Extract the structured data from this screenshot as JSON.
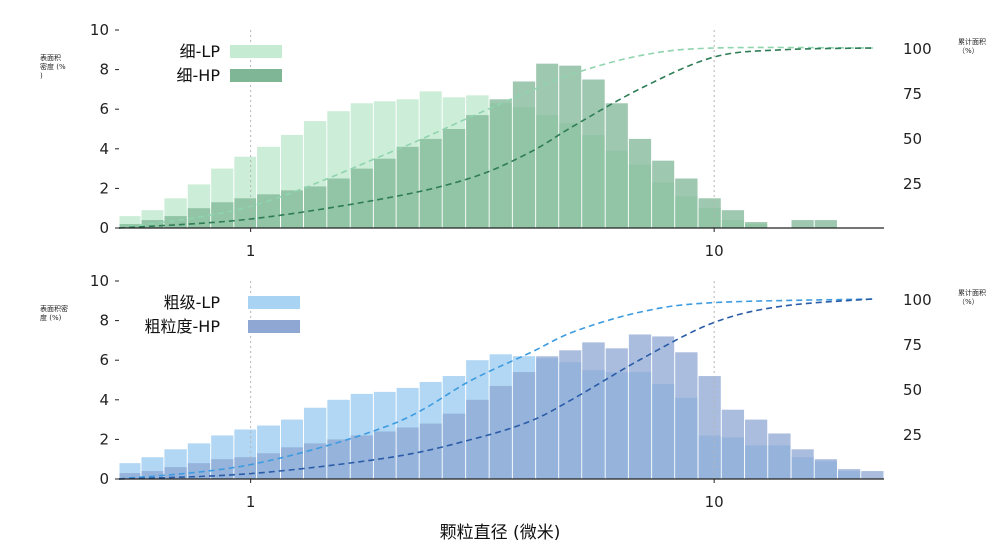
{
  "xlabel": "颗粒直径 (微米)",
  "chart_data": [
    {
      "type": "bar",
      "log_x": true,
      "xticks": [
        "1",
        "10"
      ],
      "ylim": [
        0,
        10
      ],
      "yticks": [
        "0",
        "2",
        "4",
        "6",
        "8",
        "10"
      ],
      "y2ticks": [
        "25",
        "50",
        "75",
        "100"
      ],
      "y2lim": [
        0,
        110
      ],
      "ylabel_lines": [
        "表面积",
        "密度 (%",
        ")"
      ],
      "y2label_lines": [
        "累计面积",
        "（%）"
      ],
      "grid": "vertical dotted at decades",
      "legend_position": "top-left",
      "bin_edges": [
        0.52,
        0.58,
        0.65,
        0.73,
        0.82,
        0.92,
        1.03,
        1.16,
        1.3,
        1.46,
        1.64,
        1.84,
        2.06,
        2.31,
        2.59,
        2.91,
        3.27,
        3.67,
        4.12,
        4.62,
        5.18,
        5.82,
        6.53,
        7.33,
        8.22,
        9.23,
        10.36,
        11.63,
        13.05,
        14.65,
        16.44,
        18.45,
        20.71,
        23.25
      ],
      "series": [
        {
          "name": "细-LP",
          "color": "#c6ebd3",
          "values": [
            0.6,
            0.9,
            1.5,
            2.2,
            3.0,
            3.6,
            4.1,
            4.7,
            5.4,
            5.9,
            6.3,
            6.4,
            6.5,
            6.9,
            6.6,
            6.7,
            6.3,
            6.1,
            5.7,
            5.3,
            4.7,
            3.9,
            3.2,
            2.3,
            1.6,
            1.0,
            0.4,
            0.2,
            0.0,
            0.0,
            0.0,
            0.0,
            0.0
          ]
        },
        {
          "name": "细-HP",
          "color": "#7fb695",
          "values": [
            0.2,
            0.4,
            0.6,
            1.0,
            1.3,
            1.5,
            1.7,
            1.9,
            2.1,
            2.5,
            3.0,
            3.5,
            4.1,
            4.5,
            5.0,
            5.7,
            6.5,
            7.4,
            8.3,
            8.2,
            7.5,
            6.3,
            4.5,
            3.4,
            2.5,
            1.5,
            0.9,
            0.3,
            0.0,
            0.4,
            0.4,
            0.0,
            0.0
          ]
        }
      ],
      "cumulative": [
        {
          "series": "细-LP",
          "points": [
            [
              0.52,
              0
            ],
            [
              1,
              12
            ],
            [
              2,
              42
            ],
            [
              3,
              62
            ],
            [
              4,
              76
            ],
            [
              5,
              86
            ],
            [
              7,
              96
            ],
            [
              10,
              100
            ],
            [
              22,
              100
            ]
          ]
        },
        {
          "series": "细-HP",
          "points": [
            [
              0.52,
              0
            ],
            [
              1,
              5
            ],
            [
              2,
              17
            ],
            [
              3,
              28
            ],
            [
              4,
              42
            ],
            [
              5,
              57
            ],
            [
              7,
              78
            ],
            [
              10,
              95
            ],
            [
              14,
              99
            ],
            [
              22,
              100
            ]
          ]
        }
      ]
    },
    {
      "type": "bar",
      "log_x": true,
      "xticks": [
        "1",
        "10"
      ],
      "ylim": [
        0,
        10
      ],
      "yticks": [
        "0",
        "2",
        "4",
        "6",
        "8",
        "10"
      ],
      "y2ticks": [
        "25",
        "50",
        "75",
        "100"
      ],
      "y2lim": [
        0,
        110
      ],
      "ylabel_lines": [
        "表面积密",
        "度 (%)"
      ],
      "y2label_lines": [
        "累计面积",
        "（%）"
      ],
      "grid": "vertical dotted at decades",
      "legend_position": "top-left",
      "bin_edges": [
        0.52,
        0.58,
        0.65,
        0.73,
        0.82,
        0.92,
        1.03,
        1.16,
        1.3,
        1.46,
        1.64,
        1.84,
        2.06,
        2.31,
        2.59,
        2.91,
        3.27,
        3.67,
        4.12,
        4.62,
        5.18,
        5.82,
        6.53,
        7.33,
        8.22,
        9.23,
        10.36,
        11.63,
        13.05,
        14.65,
        16.44,
        18.45,
        20.71,
        23.25
      ],
      "series": [
        {
          "name": "粗级-LP",
          "color": "#a9d3f3",
          "values": [
            0.8,
            1.1,
            1.5,
            1.8,
            2.2,
            2.5,
            2.7,
            3.0,
            3.6,
            4.0,
            4.3,
            4.4,
            4.6,
            4.9,
            5.2,
            6.0,
            6.3,
            6.2,
            6.1,
            5.9,
            5.5,
            5.4,
            5.4,
            4.8,
            4.1,
            2.2,
            2.1,
            1.7,
            1.7,
            1.1,
            0.9,
            0.4,
            0.0
          ]
        },
        {
          "name": "粗粒度-HP",
          "color": "#8ea7d3",
          "values": [
            0.3,
            0.4,
            0.6,
            0.8,
            1.0,
            1.1,
            1.3,
            1.6,
            1.8,
            2.0,
            2.2,
            2.4,
            2.6,
            2.8,
            3.3,
            4.0,
            4.7,
            5.4,
            6.2,
            6.5,
            6.9,
            6.6,
            7.3,
            7.2,
            6.4,
            5.2,
            3.5,
            3.0,
            2.3,
            1.5,
            1.0,
            0.5,
            0.4
          ]
        }
      ],
      "cumulative": [
        {
          "series": "粗级-LP",
          "points": [
            [
              0.52,
              0
            ],
            [
              1,
              8
            ],
            [
              2,
              30
            ],
            [
              3,
              55
            ],
            [
              4,
              70
            ],
            [
              5,
              82
            ],
            [
              7,
              93
            ],
            [
              10,
              98
            ],
            [
              22,
              100
            ]
          ]
        },
        {
          "series": "粗粒度-HP",
          "points": [
            [
              0.52,
              0
            ],
            [
              1,
              3
            ],
            [
              2,
              12
            ],
            [
              3,
              22
            ],
            [
              4,
              32
            ],
            [
              5,
              45
            ],
            [
              7,
              67
            ],
            [
              10,
              87
            ],
            [
              14,
              96
            ],
            [
              22,
              100
            ]
          ]
        }
      ]
    }
  ]
}
